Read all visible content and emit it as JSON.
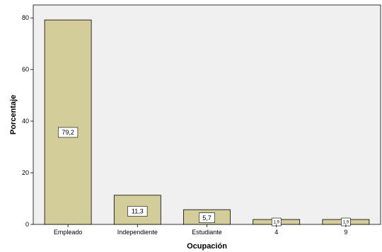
{
  "chart_data": {
    "type": "bar",
    "xlabel": "Ocupación",
    "ylabel": "Porcentaje",
    "categories": [
      "Empleado",
      "Independiente",
      "Estudiante",
      "4",
      "9"
    ],
    "values": [
      79.2,
      11.3,
      5.7,
      1.9,
      1.9
    ],
    "data_labels": [
      "79,2",
      "11,3",
      "5,7",
      "1,9",
      "1,9"
    ],
    "ylim": [
      0,
      85
    ],
    "yticks": [
      0,
      20,
      40,
      60,
      80
    ],
    "grid": false,
    "colors": {
      "bar": "#d3cd9a",
      "plot_background": "#f0f0f0",
      "bar_stroke": "#000000"
    }
  }
}
